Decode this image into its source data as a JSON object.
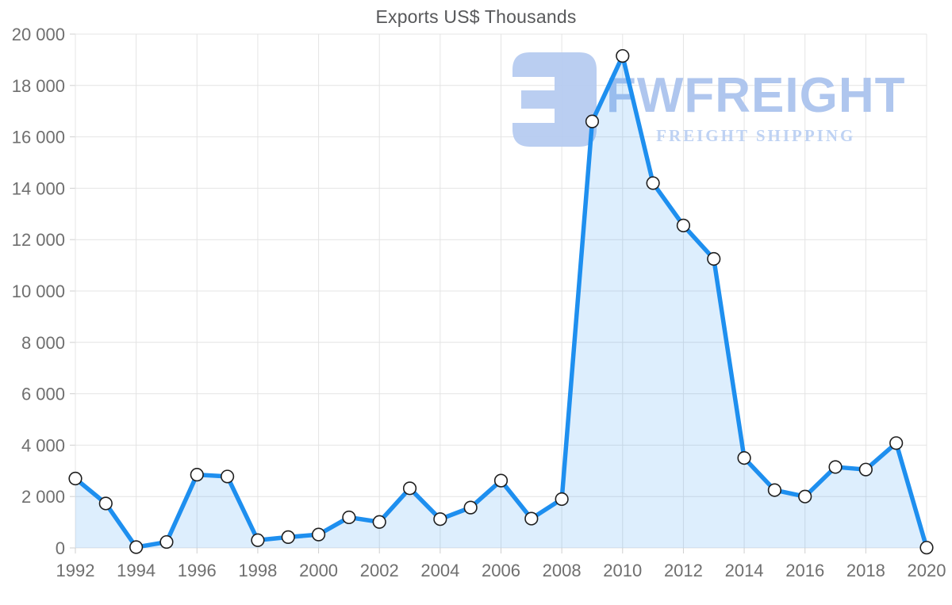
{
  "title": "Exports US$ Thousands",
  "watermark": {
    "name": "FWFREIGHT",
    "tagline": "FREIGHT SHIPPING"
  },
  "colors": {
    "line": "#1e8fef",
    "area_fill": "rgba(30,143,239,0.15)",
    "marker_fill": "#ffffff",
    "marker_stroke": "#1f1f1f",
    "grid": "#e4e4e4",
    "axis_text": "#6f6f6f",
    "title_text": "#57585a",
    "watermark_mark": "#b4caf0"
  },
  "chart_data": {
    "type": "area",
    "title": "Exports US$ Thousands",
    "series_name": "Exports US$ Thousands",
    "x": [
      1992,
      1993,
      1994,
      1995,
      1996,
      1997,
      1998,
      1999,
      2000,
      2001,
      2002,
      2003,
      2004,
      2005,
      2006,
      2007,
      2008,
      2009,
      2010,
      2011,
      2012,
      2013,
      2014,
      2015,
      2016,
      2017,
      2018,
      2019,
      2020
    ],
    "values": [
      2700,
      1730,
      30,
      230,
      2850,
      2780,
      300,
      420,
      520,
      1190,
      1010,
      2320,
      1120,
      1570,
      2620,
      1140,
      1900,
      16600,
      19150,
      14200,
      12550,
      11250,
      3500,
      2250,
      2000,
      3150,
      3050,
      4080,
      10
    ],
    "xlim": [
      1992,
      2020
    ],
    "ylim": [
      0,
      20000
    ],
    "x_ticks": [
      1992,
      1994,
      1996,
      1998,
      2000,
      2002,
      2004,
      2006,
      2008,
      2010,
      2012,
      2014,
      2016,
      2018,
      2020
    ],
    "y_ticks": [
      0,
      2000,
      4000,
      6000,
      8000,
      10000,
      12000,
      14000,
      16000,
      18000,
      20000
    ],
    "y_tick_labels": [
      "0",
      "2 000",
      "4 000",
      "6 000",
      "8 000",
      "10 000",
      "12 000",
      "14 000",
      "16 000",
      "18 000",
      "20 000"
    ],
    "grid": true,
    "legend": "none",
    "marker": "circle",
    "xlabel": "",
    "ylabel": ""
  }
}
